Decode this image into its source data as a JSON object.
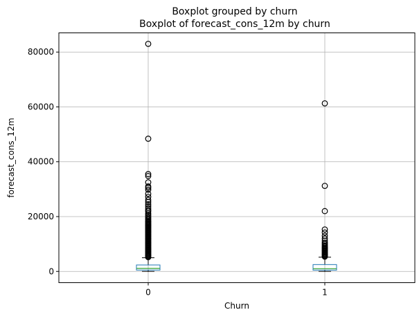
{
  "chart_data": {
    "type": "box",
    "title": "Boxplot grouped by churn",
    "subtitle": "Boxplot of forecast_cons_12m by churn",
    "xlabel": "Churn",
    "ylabel": "forecast_cons_12m",
    "categories": [
      "0",
      "1"
    ],
    "ylim": [
      -4100,
      87000
    ],
    "yticks": [
      0,
      20000,
      40000,
      60000,
      80000
    ],
    "grid": true,
    "colors": {
      "box": "#1f77b4",
      "median": "#2ca02c",
      "whisker": "#000000",
      "flier": "#000000",
      "grid": "#b0b0b0"
    },
    "boxes": [
      {
        "category": "0",
        "whisker_low": 0,
        "q1": 495,
        "median": 1100,
        "q3": 2350,
        "whisker_high": 5000,
        "fliers": [
          5200,
          5500,
          5800,
          6100,
          6400,
          6700,
          7000,
          7300,
          7600,
          7900,
          8200,
          8500,
          8800,
          9100,
          9400,
          9700,
          10000,
          10300,
          10600,
          10900,
          11200,
          11500,
          11800,
          12100,
          12400,
          12700,
          13000,
          13300,
          13600,
          13900,
          14200,
          14500,
          14800,
          15100,
          15400,
          15700,
          16000,
          16300,
          16600,
          16900,
          17200,
          17500,
          17800,
          18100,
          18400,
          18800,
          19200,
          19700,
          20200,
          20700,
          21200,
          21900,
          22400,
          23100,
          23800,
          24500,
          25300,
          26100,
          27200,
          28300,
          29800,
          30500,
          31000,
          32500,
          34800,
          35500,
          48400,
          83000
        ]
      },
      {
        "category": "1",
        "whisker_low": 0,
        "q1": 480,
        "median": 1000,
        "q3": 2500,
        "whisker_high": 5200,
        "fliers": [
          5400,
          5700,
          6000,
          6300,
          6600,
          6900,
          7200,
          7500,
          7800,
          8100,
          8400,
          8700,
          9100,
          9500,
          10000,
          10500,
          11200,
          12000,
          13000,
          14200,
          15300,
          22000,
          31200,
          61300
        ]
      }
    ]
  }
}
